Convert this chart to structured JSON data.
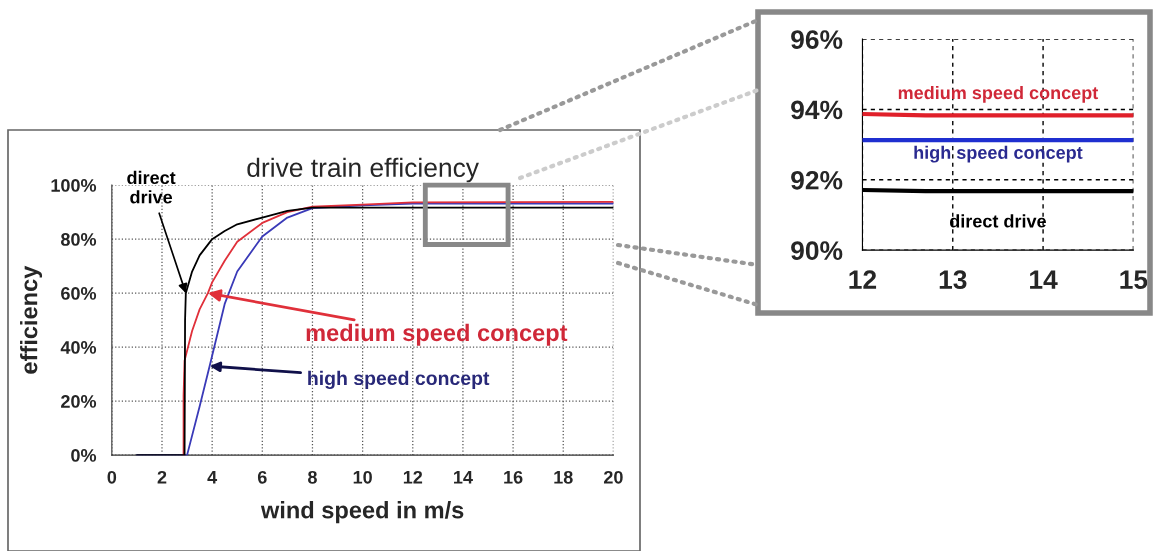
{
  "chart_data": [
    {
      "type": "line",
      "title": "drive train efficiency",
      "xlabel": "wind speed in m/s",
      "ylabel": "efficiency",
      "xlim": [
        0,
        20
      ],
      "xticks": [
        0,
        2,
        4,
        6,
        8,
        10,
        12,
        14,
        16,
        18,
        20
      ],
      "ylim": [
        0,
        100
      ],
      "yticks": [
        {
          "value": 0,
          "label": "0%"
        },
        {
          "value": 20,
          "label": "20%"
        },
        {
          "value": 40,
          "label": "40%"
        },
        {
          "value": 60,
          "label": "60%"
        },
        {
          "value": 80,
          "label": "80%"
        },
        {
          "value": 100,
          "label": "100%"
        }
      ],
      "grid": true,
      "marker": "none",
      "line_style": "solid",
      "series": [
        {
          "color": "#3a3ab8",
          "x": [
            1,
            3.0,
            3.5,
            3.9,
            4.5,
            5,
            6,
            7,
            8,
            10,
            12,
            20
          ],
          "values": [
            0,
            0,
            18,
            33,
            56,
            68,
            81,
            88,
            91.5,
            92.5,
            93.2,
            93.2
          ]
        },
        {
          "color": "#e0303a",
          "x": [
            2.86,
            2.86,
            2.9,
            3.2,
            3.5,
            3.83,
            4,
            4.5,
            5,
            6,
            7,
            8,
            10,
            12,
            20
          ],
          "values": [
            0,
            22,
            35,
            46,
            54,
            60,
            64,
            72,
            79,
            86,
            90,
            92,
            92.8,
            93.6,
            93.8
          ]
        },
        {
          "color": "#000000",
          "x": [
            1,
            2.9,
            2.92,
            2.95,
            3.2,
            3.5,
            4,
            4.5,
            5,
            6,
            7,
            8,
            20
          ],
          "values": [
            0,
            0,
            50,
            60,
            68,
            74,
            80,
            83,
            85.5,
            88,
            90.5,
            91.7,
            91.7
          ]
        }
      ],
      "annotations": [
        {
          "text": "direct\ndrive",
          "x": 2.95,
          "y": 60
        },
        {
          "text": "medium speed concept",
          "x": 3.83,
          "y": 60
        },
        {
          "text": "high speed concept",
          "x": 3.9,
          "y": 33
        }
      ]
    },
    {
      "type": "line",
      "xlim": [
        12,
        15
      ],
      "xticks": [
        12,
        13,
        14,
        15
      ],
      "ylim": [
        90,
        96
      ],
      "yticks": [
        {
          "value": 90,
          "label": "90%"
        },
        {
          "value": 92,
          "label": "92%"
        },
        {
          "value": 94,
          "label": "94%"
        },
        {
          "value": 96,
          "label": "96%"
        }
      ],
      "grid": true,
      "marker": "none",
      "line_style": "solid",
      "series": [
        {
          "name": "medium speed concept",
          "color": "#e0202a",
          "x": [
            12,
            12.7,
            15
          ],
          "values": [
            93.87,
            93.83,
            93.83
          ]
        },
        {
          "name": "high speed concept",
          "color": "#1f2fd0",
          "x": [
            12,
            15
          ],
          "values": [
            93.13,
            93.13
          ]
        },
        {
          "name": "direct drive",
          "color": "#000000",
          "x": [
            12,
            12.7,
            15
          ],
          "values": [
            91.71,
            91.68,
            91.68
          ]
        }
      ]
    }
  ]
}
